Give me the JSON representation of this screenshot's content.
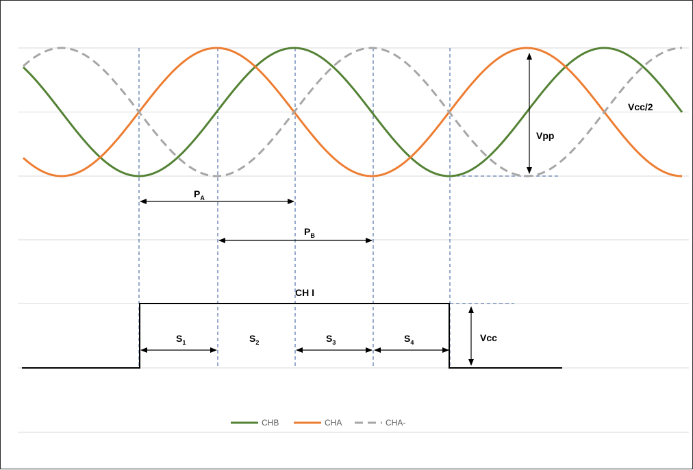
{
  "chart_data": {
    "type": "line",
    "title": "",
    "series": [
      {
        "name": "CHB",
        "color": "#548235",
        "dash": "solid",
        "phase_deg": 0
      },
      {
        "name": "CHA",
        "color": "#ED7D31",
        "dash": "solid",
        "phase_deg": 90
      },
      {
        "name": "CHA-",
        "color": "#A6A6A6",
        "dash": "dashed",
        "phase_deg": 270
      }
    ],
    "digital_signal": {
      "name": "CH I",
      "color": "#000000"
    },
    "grid": true,
    "legend_position": "bottom"
  },
  "annotations": {
    "pa": {
      "main": "P",
      "sub": "A"
    },
    "pb": {
      "main": "P",
      "sub": "B"
    },
    "chi": "CH I",
    "vpp": "Vpp",
    "vcc2": "Vcc/2",
    "vcc": "Vcc",
    "s1": {
      "main": "S",
      "sub": "1"
    },
    "s2": {
      "main": "S",
      "sub": "2"
    },
    "s3": {
      "main": "S",
      "sub": "3"
    },
    "s4": {
      "main": "S",
      "sub": "4"
    }
  },
  "colors": {
    "guide": "#2F5597",
    "grid": "#D9D9D9",
    "arrow": "#000000"
  }
}
